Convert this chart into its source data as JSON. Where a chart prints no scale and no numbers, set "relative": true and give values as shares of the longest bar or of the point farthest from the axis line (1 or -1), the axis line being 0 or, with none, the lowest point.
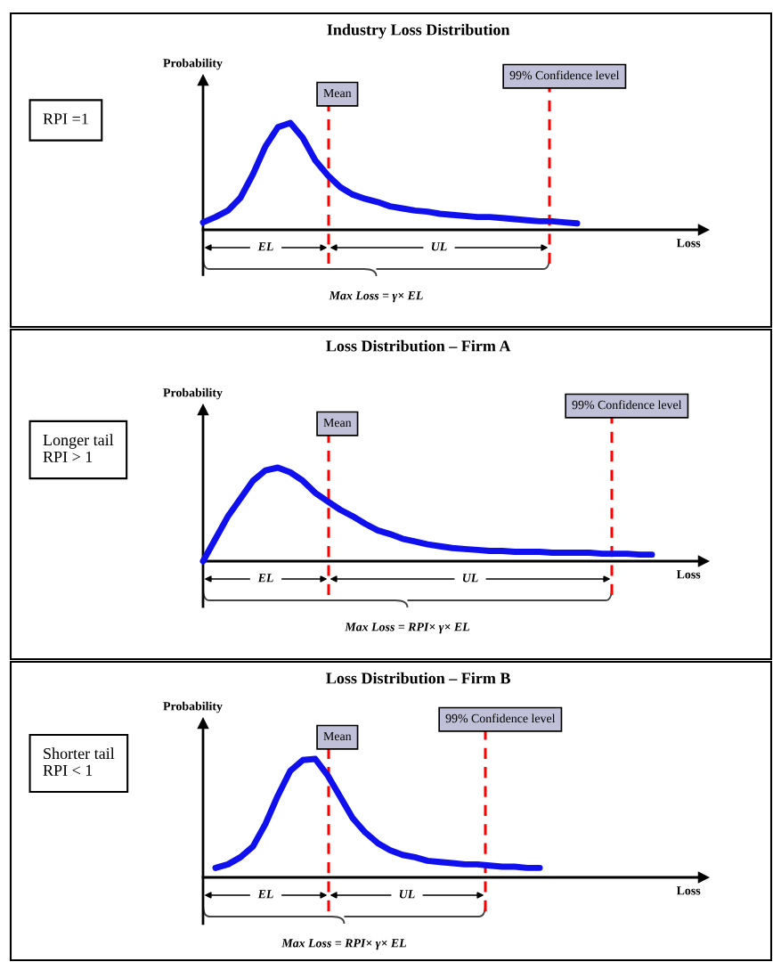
{
  "chart_data": [
    {
      "type": "line",
      "title": "Industry Loss Distribution",
      "xlabel": "Loss",
      "ylabel": "Probability",
      "relative": true,
      "categories": [
        null,
        null,
        null,
        null,
        null,
        null,
        null,
        null,
        null,
        null,
        null,
        null,
        null,
        null,
        null,
        null,
        null,
        null,
        null,
        null,
        null,
        null,
        null,
        null,
        null,
        null,
        null,
        null,
        null,
        null,
        null,
        null,
        null,
        null,
        null,
        null,
        null,
        null,
        null,
        null,
        null
      ],
      "series": [
        {
          "color": "#1010ee",
          "values": [
            0.07,
            0.12,
            0.18,
            0.3,
            0.52,
            0.78,
            0.96,
            1.0,
            0.86,
            0.65,
            0.51,
            0.4,
            0.33,
            0.29,
            0.26,
            0.22,
            0.2,
            0.18,
            0.17,
            0.15,
            0.14,
            0.13,
            0.12,
            0.12,
            0.11,
            0.1,
            0.09,
            0.08,
            0.08,
            0.07,
            0.06,
            null,
            null,
            null,
            null,
            null,
            null,
            null,
            null,
            null,
            null
          ]
        }
      ],
      "annotations": [
        "RPI =1",
        "Mean",
        "99% Confidence level",
        "EL",
        "UL",
        "Max Loss = γ× EL"
      ]
    },
    {
      "type": "line",
      "title": "Loss Distribution – Firm A",
      "xlabel": "Loss",
      "ylabel": "Probability",
      "relative": true,
      "categories": [
        null,
        null,
        null,
        null,
        null,
        null,
        null,
        null,
        null,
        null,
        null,
        null,
        null,
        null,
        null,
        null,
        null,
        null,
        null,
        null,
        null,
        null,
        null,
        null,
        null,
        null,
        null,
        null,
        null,
        null,
        null,
        null,
        null,
        null,
        null,
        null,
        null
      ],
      "series": [
        {
          "color": "#1010ee",
          "values": [
            0,
            0.24,
            0.48,
            0.67,
            0.86,
            0.97,
            1.0,
            0.95,
            0.86,
            0.73,
            0.64,
            0.55,
            0.48,
            0.4,
            0.33,
            0.29,
            0.24,
            0.21,
            0.18,
            0.16,
            0.14,
            0.13,
            0.12,
            0.11,
            0.11,
            0.1,
            0.1,
            0.1,
            0.09,
            0.09,
            0.09,
            0.09,
            0.08,
            0.08,
            0.08,
            0.07,
            0.07
          ]
        }
      ],
      "annotations": [
        "Longer tail\nRPI > 1",
        "Mean",
        "99% Confidence level",
        "EL",
        "UL",
        "Max Loss = RPI× γ× EL"
      ]
    },
    {
      "type": "line",
      "title": "Loss Distribution – Firm B",
      "xlabel": "Loss",
      "ylabel": "Probability",
      "relative": true,
      "categories": [
        null,
        null,
        null,
        null,
        null,
        null,
        null,
        null,
        null,
        null,
        null,
        null,
        null,
        null,
        null,
        null,
        null,
        null,
        null,
        null,
        null,
        null,
        null,
        null,
        null,
        null,
        null,
        null,
        null,
        null,
        null,
        null,
        null,
        null,
        null,
        null,
        null,
        null,
        null,
        null,
        null
      ],
      "series": [
        {
          "color": "#1010ee",
          "values": [
            null,
            0.08,
            0.11,
            0.17,
            0.26,
            0.45,
            0.69,
            0.9,
            0.99,
            1.0,
            0.86,
            0.68,
            0.5,
            0.38,
            0.29,
            0.23,
            0.19,
            0.17,
            0.14,
            0.13,
            0.12,
            0.11,
            0.11,
            0.1,
            0.09,
            0.09,
            0.08,
            0.08,
            null,
            null,
            null,
            null,
            null,
            null,
            null,
            null,
            null,
            null,
            null,
            null,
            null
          ]
        }
      ],
      "annotations": [
        "Shorter tail\nRPI < 1",
        "Mean",
        "99% Confidence level",
        "EL",
        "UL",
        "Max Loss = RPI× γ× EL"
      ]
    }
  ]
}
